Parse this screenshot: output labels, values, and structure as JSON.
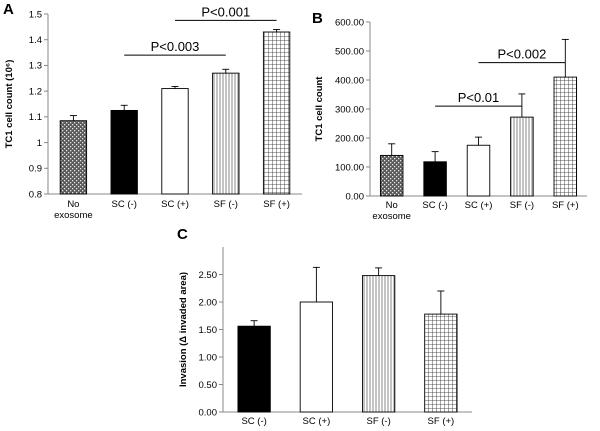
{
  "chart_data": [
    {
      "panel": "A",
      "type": "bar",
      "ylabel": "TC1 cell count (10⁶)",
      "ylim": [
        0.8,
        1.5
      ],
      "yticks": [
        "0.8",
        "0.9",
        "1",
        "1.1",
        "1.2",
        "1.3",
        "1.4",
        "1.5"
      ],
      "yticks_values": [
        0.8,
        0.9,
        1.0,
        1.1,
        1.2,
        1.3,
        1.4,
        1.5
      ],
      "categories": [
        [
          "No",
          "exosome"
        ],
        [
          "SC (-)"
        ],
        [
          "SC (+)"
        ],
        [
          "SF (-)"
        ],
        [
          "SF (+)"
        ]
      ],
      "values": [
        1.085,
        1.125,
        1.21,
        1.27,
        1.43
      ],
      "errors": [
        0.02,
        0.02,
        0.008,
        0.015,
        0.01
      ],
      "patterns": [
        "dots",
        "solid",
        "empty",
        "vlines",
        "grid"
      ],
      "annotations": [
        {
          "text": "P<0.003",
          "from": 1,
          "to": 3,
          "y": 1.34
        },
        {
          "text": "P<0.001",
          "from": 2,
          "to": 4,
          "y": 1.475
        }
      ]
    },
    {
      "panel": "B",
      "type": "bar",
      "ylabel": "TC1 cell count",
      "ylim": [
        0,
        600
      ],
      "yticks": [
        "0.00",
        "100.00",
        "200.00",
        "300.00",
        "400.00",
        "500.00",
        "600.00"
      ],
      "yticks_values": [
        0,
        100,
        200,
        300,
        400,
        500,
        600
      ],
      "categories": [
        [
          "No",
          "exosome"
        ],
        [
          "SC (-)"
        ],
        [
          "SC (+)"
        ],
        [
          "SF (-)"
        ],
        [
          "SF (+)"
        ]
      ],
      "values": [
        140,
        118,
        175,
        272,
        410
      ],
      "errors": [
        40,
        35,
        28,
        80,
        130
      ],
      "patterns": [
        "dots",
        "solid",
        "empty",
        "vlines",
        "grid"
      ],
      "annotations": [
        {
          "text": "P<0.01",
          "from": 1,
          "to": 3,
          "y": 310
        },
        {
          "text": "P<0.002",
          "from": 2,
          "to": 4,
          "y": 460
        }
      ]
    },
    {
      "panel": "C",
      "type": "bar",
      "ylabel": "Invasion (Δ invaded area)",
      "ylim": [
        0,
        3
      ],
      "yticks": [
        "0.00",
        "0.50",
        "1.00",
        "1.50",
        "2.00",
        "2.50"
      ],
      "yticks_values": [
        0,
        0.5,
        1.0,
        1.5,
        2.0,
        2.5
      ],
      "categories": [
        [
          "SC (-)"
        ],
        [
          "SC (+)"
        ],
        [
          "SF (-)"
        ],
        [
          "SF (+)"
        ]
      ],
      "values": [
        1.56,
        2.0,
        2.48,
        1.78
      ],
      "errors": [
        0.1,
        0.63,
        0.14,
        0.42
      ],
      "patterns": [
        "solid",
        "empty",
        "vlines",
        "grid"
      ],
      "annotations": []
    }
  ]
}
